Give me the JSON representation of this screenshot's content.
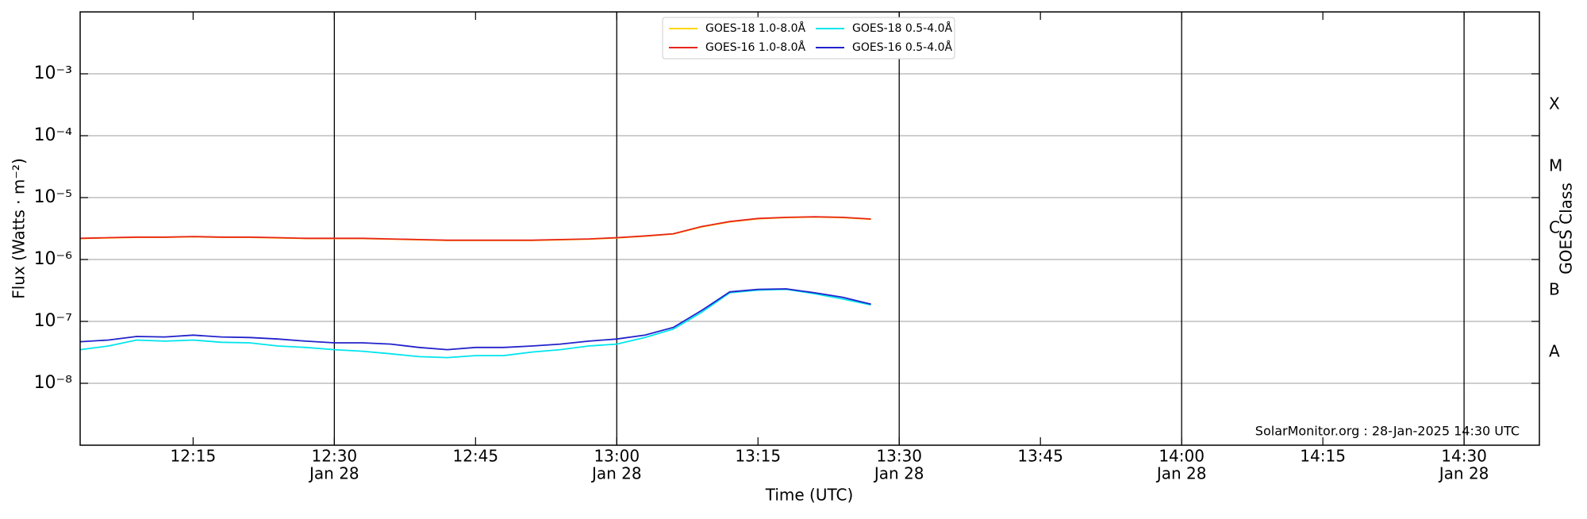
{
  "chart_data": {
    "type": "line",
    "ylabel": "Flux (Watts · m⁻²)",
    "xlabel": "Time (UTC)",
    "y2label": "GOES Class",
    "annotation": "SolarMonitor.org : 28-Jan-2025 14:30 UTC",
    "log_y": true,
    "grid": true,
    "legend": "upper center",
    "xlim": [
      "12:03",
      "14:38"
    ],
    "ylim": [
      1e-09,
      0.01
    ],
    "yticks": [
      {
        "value": 1e-08,
        "label": "10⁻⁸"
      },
      {
        "value": 1e-07,
        "label": "10⁻⁷"
      },
      {
        "value": 1e-06,
        "label": "10⁻⁶"
      },
      {
        "value": 1e-05,
        "label": "10⁻⁵"
      },
      {
        "value": 0.0001,
        "label": "10⁻⁴"
      },
      {
        "value": 0.001,
        "label": "10⁻³"
      }
    ],
    "xticks": [
      {
        "value": "12:15",
        "label": "12:15"
      },
      {
        "value": "12:30",
        "label": "12:30",
        "date": "Jan 28"
      },
      {
        "value": "12:45",
        "label": "12:45"
      },
      {
        "value": "13:00",
        "label": "13:00",
        "date": "Jan 28"
      },
      {
        "value": "13:15",
        "label": "13:15"
      },
      {
        "value": "13:30",
        "label": "13:30",
        "date": "Jan 28"
      },
      {
        "value": "13:45",
        "label": "13:45"
      },
      {
        "value": "14:00",
        "label": "14:00",
        "date": "Jan 28"
      },
      {
        "value": "14:15",
        "label": "14:15"
      },
      {
        "value": "14:30",
        "label": "14:30",
        "date": "Jan 28"
      }
    ],
    "classes": [
      {
        "label": "A",
        "value": 3.16e-08
      },
      {
        "label": "B",
        "value": 3.16e-07
      },
      {
        "label": "C",
        "value": 3.16e-06
      },
      {
        "label": "M",
        "value": 3.16e-05
      },
      {
        "label": "X",
        "value": 0.000316
      }
    ],
    "x": [
      "12:03",
      "12:06",
      "12:09",
      "12:12",
      "12:15",
      "12:18",
      "12:21",
      "12:24",
      "12:27",
      "12:30",
      "12:33",
      "12:36",
      "12:39",
      "12:42",
      "12:45",
      "12:48",
      "12:51",
      "12:54",
      "12:57",
      "13:00",
      "13:03",
      "13:06",
      "13:09",
      "13:12",
      "13:15",
      "13:18",
      "13:21",
      "13:24",
      "13:27"
    ],
    "series": [
      {
        "name": "GOES-18 1.0-8.0Å",
        "color": "#ffd700",
        "values": [
          2.18e-06,
          2.23e-06,
          2.28e-06,
          2.28e-06,
          2.33e-06,
          2.28e-06,
          2.28e-06,
          2.23e-06,
          2.18e-06,
          2.18e-06,
          2.18e-06,
          2.13e-06,
          2.08e-06,
          2.03e-06,
          2.03e-06,
          2.03e-06,
          2.03e-06,
          2.08e-06,
          2.13e-06,
          2.23e-06,
          2.38e-06,
          2.58e-06,
          3.35e-06,
          4.05e-06,
          4.55e-06,
          4.75e-06,
          4.85e-06,
          4.75e-06,
          4.45e-06
        ]
      },
      {
        "name": "GOES-16 1.0-8.0Å",
        "color": "#e8251a",
        "values": [
          2.2e-06,
          2.25e-06,
          2.3e-06,
          2.3e-06,
          2.35e-06,
          2.3e-06,
          2.3e-06,
          2.25e-06,
          2.2e-06,
          2.2e-06,
          2.2e-06,
          2.15e-06,
          2.1e-06,
          2.05e-06,
          2.05e-06,
          2.05e-06,
          2.05e-06,
          2.1e-06,
          2.15e-06,
          2.25e-06,
          2.4e-06,
          2.6e-06,
          3.4e-06,
          4.1e-06,
          4.6e-06,
          4.8e-06,
          4.9e-06,
          4.8e-06,
          4.5e-06
        ]
      },
      {
        "name": "GOES-18 0.5-4.0Å",
        "color": "#00e5ee",
        "values": [
          3.5e-08,
          4e-08,
          5e-08,
          4.8e-08,
          5e-08,
          4.6e-08,
          4.5e-08,
          4e-08,
          3.8e-08,
          3.5e-08,
          3.3e-08,
          3e-08,
          2.7e-08,
          2.6e-08,
          2.8e-08,
          2.8e-08,
          3.2e-08,
          3.5e-08,
          4e-08,
          4.3e-08,
          5.5e-08,
          7.5e-08,
          1.4e-07,
          2.9e-07,
          3.2e-07,
          3.3e-07,
          2.8e-07,
          2.3e-07,
          1.85e-07
        ]
      },
      {
        "name": "GOES-16 0.5-4.0Å",
        "color": "#2222cc",
        "values": [
          4.7e-08,
          5e-08,
          5.7e-08,
          5.6e-08,
          6e-08,
          5.6e-08,
          5.5e-08,
          5.2e-08,
          4.8e-08,
          4.5e-08,
          4.5e-08,
          4.3e-08,
          3.8e-08,
          3.5e-08,
          3.8e-08,
          3.8e-08,
          4e-08,
          4.3e-08,
          4.8e-08,
          5.2e-08,
          6e-08,
          8e-08,
          1.5e-07,
          3e-07,
          3.3e-07,
          3.35e-07,
          2.9e-07,
          2.45e-07,
          1.9e-07
        ]
      }
    ]
  }
}
